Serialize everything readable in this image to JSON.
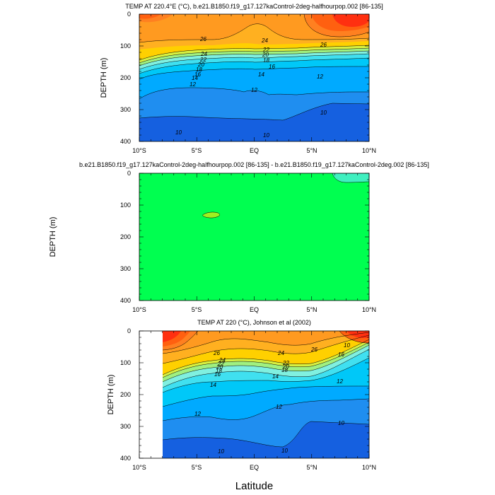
{
  "chart_data": [
    {
      "type": "contour",
      "title": "TEMP AT 220.4°E (°C), b.e21.B1850.f19_g17.127kaControl-2deg-halfhourpop.002 [86-135]",
      "ylabel": "DEPTH (m)",
      "xlabel": "",
      "x_ticks": [
        "10°S",
        "5°S",
        "EQ",
        "5°N",
        "10°N"
      ],
      "x_range": [
        -10,
        10
      ],
      "y_ticks": [
        "0",
        "100",
        "200",
        "300",
        "400"
      ],
      "y_range": [
        0,
        400
      ],
      "y_reversed": true,
      "palette": [
        "#1560e0",
        "#1f8ef0",
        "#00aaff",
        "#00c8f8",
        "#40e0f0",
        "#80f0e0",
        "#a0f080",
        "#d8f040",
        "#ffd000",
        "#ffb020",
        "#ff9a20",
        "#ff8020",
        "#ff6010",
        "#ff3010"
      ],
      "contour_labels": [
        "26",
        "24",
        "22",
        "20",
        "18",
        "16",
        "14",
        "12",
        "10",
        "26",
        "24",
        "22",
        "20",
        "18",
        "16",
        "14",
        "12",
        "12",
        "10",
        "10"
      ]
    },
    {
      "type": "contour",
      "title": "b.e21.B1850.f19_g17.127kaControl-2deg-halfhourpop.002 [86-135] - b.e21.B1850.f19_g17.127kaControl-2deg.002 [86-135]",
      "ylabel": "DEPTH (m)",
      "xlabel": "",
      "x_ticks": [
        "10°S",
        "5°S",
        "EQ",
        "5°N",
        "10°N"
      ],
      "x_range": [
        -10,
        10
      ],
      "y_ticks": [
        "0",
        "100",
        "200",
        "300",
        "400"
      ],
      "y_range": [
        0,
        400
      ],
      "y_reversed": true,
      "colors": {
        "background": "#00ff50",
        "patch": "#a0f020",
        "corner": "#40f0c0"
      }
    },
    {
      "type": "contour",
      "title": "TEMP AT 220 (°C), Johnson et al (2002)",
      "ylabel": "DEPTH (m)",
      "xlabel": "Latitude",
      "x_ticks": [
        "10°S",
        "5°S",
        "EQ",
        "5°N",
        "10°N"
      ],
      "x_range": [
        -10,
        10
      ],
      "data_x_range": [
        -8,
        10
      ],
      "y_ticks": [
        "0",
        "100",
        "200",
        "300",
        "400"
      ],
      "y_range": [
        0,
        400
      ],
      "y_reversed": true,
      "contour_labels": [
        "26",
        "24",
        "22",
        "20",
        "18",
        "16",
        "14",
        "12",
        "10",
        "26",
        "24",
        "22",
        "20",
        "18",
        "16",
        "14",
        "12",
        "12",
        "10",
        "10",
        "10"
      ]
    }
  ]
}
